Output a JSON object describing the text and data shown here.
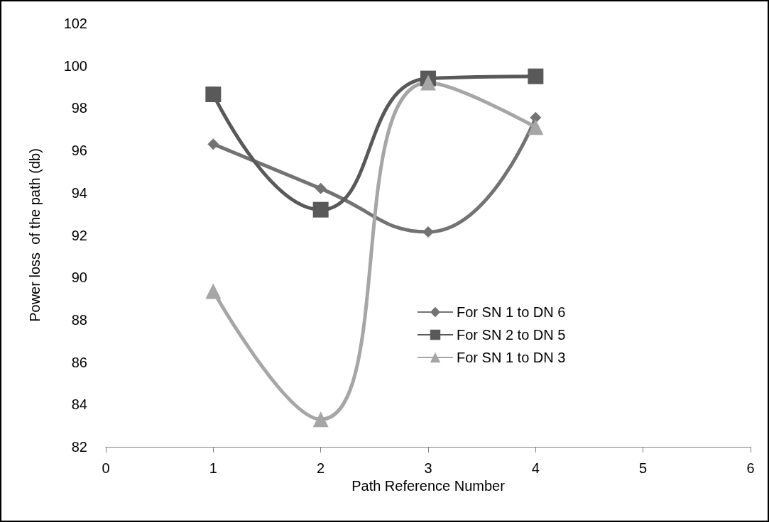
{
  "chart_data": {
    "type": "line",
    "xlabel": "Path Reference Number",
    "ylabel": "Power loss  of the path (db)",
    "x": [
      1,
      2,
      3,
      4
    ],
    "xlim": [
      0,
      6
    ],
    "xticks": [
      0,
      1,
      2,
      3,
      4,
      5,
      6
    ],
    "ylim": [
      82,
      102
    ],
    "yticks": [
      82,
      84,
      86,
      88,
      90,
      92,
      94,
      96,
      98,
      100,
      102
    ],
    "grid": false,
    "legend": "right",
    "series": [
      {
        "name": "For SN 1 to DN 6",
        "color": "#737373",
        "marker": "diamond",
        "values": [
          96.3,
          94.2,
          92.15,
          97.55
        ]
      },
      {
        "name": "For SN 2 to DN 5",
        "color": "#595959",
        "marker": "square",
        "values": [
          98.65,
          93.2,
          99.4,
          99.5
        ]
      },
      {
        "name": "For SN 1 to DN 3",
        "color": "#a6a6a6",
        "marker": "triangle",
        "values": [
          89.35,
          83.3,
          99.2,
          97.1
        ]
      }
    ]
  }
}
